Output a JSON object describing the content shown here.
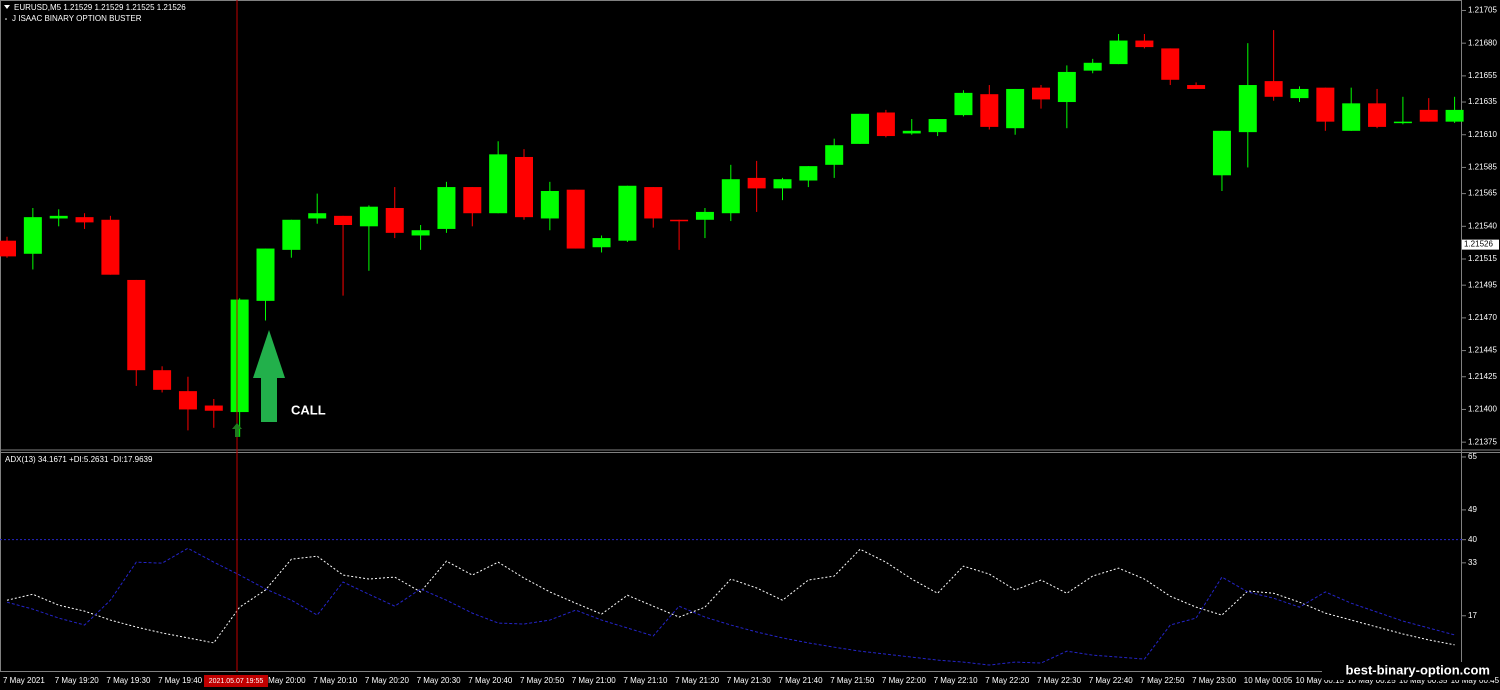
{
  "chart_data": [
    {
      "type": "candlestick",
      "title": "EURUSD,M5  1.21529 1.21529 1.21525 1.21526",
      "subtitle": "J ISAAC BINARY OPTION BUSTER",
      "annotation": "CALL",
      "crosshair": "2021.05.07 19:55",
      "last_price": 1.21526,
      "up_color": "#00ff00",
      "down_color": "#ff0000",
      "categories": [
        "7 May 2021",
        null,
        "7 May 19:20",
        null,
        "7 May 19:30",
        null,
        "7 May 19:40",
        null,
        null,
        null,
        "7 May 20:00",
        null,
        "7 May 20:10",
        null,
        "7 May 20:20",
        null,
        "7 May 20:30",
        null,
        "7 May 20:40",
        null,
        "7 May 20:50",
        null,
        "7 May 21:00",
        null,
        "7 May 21:10",
        null,
        "7 May 21:20",
        null,
        "7 May 21:30",
        null,
        "7 May 21:40",
        null,
        "7 May 21:50",
        null,
        "7 May 22:00",
        null,
        "7 May 22:10",
        null,
        "7 May 22:20",
        null,
        "7 May 22:30",
        null,
        "7 May 22:40",
        null,
        "7 May 22:50",
        null,
        "7 May 23:00",
        null,
        "10 May 00:05",
        null,
        "10 May 00:15",
        null,
        "10 May 00:25",
        null,
        "10 May 00:35",
        null,
        "10 May 00:45"
      ],
      "open": [
        1.21529,
        1.21519,
        1.21546,
        1.21547,
        1.21545,
        1.21499,
        1.2143,
        1.21414,
        1.21403,
        1.21398,
        1.21483,
        1.21522,
        1.21546,
        1.21548,
        1.2154,
        1.21554,
        1.21533,
        1.21538,
        1.2157,
        1.2155,
        1.21593,
        1.21546,
        1.21568,
        1.21524,
        1.21529,
        1.2157,
        1.21545,
        1.21545,
        1.2155,
        1.21577,
        1.21569,
        1.21575,
        1.21587,
        1.21603,
        1.21627,
        1.21611,
        1.21612,
        1.21625,
        1.21641,
        1.21615,
        1.21646,
        1.21635,
        1.21659,
        1.21664,
        1.21682,
        1.21676,
        1.21648,
        1.21579,
        1.21612,
        1.21651,
        1.21638,
        1.21646,
        1.21613,
        1.21634,
        1.21619,
        1.21629,
        1.2162
      ],
      "high": [
        1.21532,
        1.21554,
        1.21553,
        1.2155,
        1.21548,
        1.21499,
        1.21433,
        1.21425,
        1.21408,
        1.21485,
        1.21523,
        1.21545,
        1.21565,
        1.21548,
        1.21556,
        1.2157,
        1.21541,
        1.21574,
        1.2157,
        1.21605,
        1.21599,
        1.21574,
        1.21568,
        1.21533,
        1.21571,
        1.2157,
        1.21545,
        1.21554,
        1.21587,
        1.2159,
        1.21577,
        1.21586,
        1.21607,
        1.21626,
        1.21629,
        1.21622,
        1.21622,
        1.21644,
        1.21648,
        1.21645,
        1.21648,
        1.21663,
        1.21668,
        1.21687,
        1.21687,
        1.21676,
        1.2165,
        1.21613,
        1.2168,
        1.2169,
        1.21647,
        1.21646,
        1.21646,
        1.21645,
        1.21639,
        1.21638,
        1.21639
      ],
      "low": [
        1.21516,
        1.21507,
        1.2154,
        1.21538,
        1.21503,
        1.21418,
        1.21413,
        1.21384,
        1.21386,
        1.21379,
        1.21468,
        1.21516,
        1.21542,
        1.21487,
        1.21506,
        1.21531,
        1.21522,
        1.21535,
        1.2154,
        1.2155,
        1.21545,
        1.21537,
        1.21523,
        1.2152,
        1.21528,
        1.21539,
        1.21522,
        1.21531,
        1.21544,
        1.21551,
        1.2156,
        1.2157,
        1.21577,
        1.21603,
        1.21608,
        1.2161,
        1.21609,
        1.21624,
        1.21614,
        1.2161,
        1.2163,
        1.21615,
        1.21657,
        1.21664,
        1.21676,
        1.21648,
        1.21645,
        1.21567,
        1.21585,
        1.21636,
        1.21635,
        1.21613,
        1.21613,
        1.21615,
        1.21618,
        1.2162,
        1.21619
      ],
      "close": [
        1.21517,
        1.21547,
        1.21548,
        1.21543,
        1.21503,
        1.2143,
        1.21415,
        1.214,
        1.21399,
        1.21484,
        1.21523,
        1.21545,
        1.2155,
        1.21541,
        1.21555,
        1.21535,
        1.21537,
        1.2157,
        1.2155,
        1.21595,
        1.21547,
        1.21567,
        1.21523,
        1.21531,
        1.21571,
        1.21546,
        1.21544,
        1.21551,
        1.21576,
        1.21569,
        1.21576,
        1.21586,
        1.21602,
        1.21626,
        1.21609,
        1.21613,
        1.21622,
        1.21642,
        1.21616,
        1.21645,
        1.21637,
        1.21658,
        1.21665,
        1.21682,
        1.21677,
        1.21652,
        1.21645,
        1.21613,
        1.21648,
        1.21639,
        1.21645,
        1.2162,
        1.21634,
        1.21616,
        1.2162,
        1.2162,
        1.21629
      ],
      "ylim": [
        1.21369,
        1.21713
      ],
      "yticks": [
        1.21705,
        {
          "value": 1.2168,
          "label": "1.21680"
        },
        1.21655,
        1.21635,
        {
          "value": 1.2161,
          "label": "1.21610"
        },
        1.21585,
        1.21565,
        {
          "value": 1.2154,
          "label": "1.21540"
        },
        1.21515,
        1.21495,
        {
          "value": 1.2147,
          "label": "1.21470"
        },
        1.21445,
        1.21425,
        {
          "value": 1.214,
          "label": "1.21400"
        },
        1.21375
      ]
    },
    {
      "type": "line",
      "title": "ADX(13) 34.1671 +DI:5.2631 -DI:17.9639",
      "series": [
        {
          "color": "#ffffff",
          "values": [
            21.7,
            23.5,
            20.2,
            18.4,
            15.7,
            13.6,
            11.8,
            10.3,
            8.8,
            19.6,
            24.8,
            34.1,
            35.0,
            29.3,
            28.1,
            28.7,
            24.2,
            33.5,
            29.3,
            33.2,
            28.4,
            24.2,
            20.8,
            17.5,
            23.2,
            19.9,
            16.6,
            19.6,
            28.1,
            25.4,
            21.7,
            27.8,
            29.0,
            37.1,
            33.2,
            28.1,
            23.8,
            32.0,
            29.6,
            24.8,
            27.8,
            23.8,
            29.0,
            31.4,
            28.1,
            22.9,
            19.6,
            17.2,
            24.5,
            23.8,
            21.1,
            17.8,
            15.7,
            13.6,
            11.5,
            9.7,
            8.2
          ]
        },
        {
          "color": "#2424c8",
          "values": [
            21.1,
            19.0,
            16.3,
            14.2,
            21.7,
            33.2,
            32.9,
            37.4,
            33.2,
            29.3,
            25.1,
            21.7,
            17.2,
            27.2,
            23.5,
            19.9,
            25.1,
            21.7,
            17.8,
            14.8,
            14.5,
            15.7,
            18.7,
            15.7,
            13.3,
            10.9,
            19.9,
            16.6,
            14.2,
            12.1,
            10.3,
            8.8,
            7.5,
            6.3,
            5.4,
            4.5,
            3.6,
            3.0,
            2.1,
            3.0,
            2.7,
            6.3,
            5.1,
            4.5,
            3.9,
            14.2,
            16.3,
            28.7,
            24.2,
            22.3,
            19.6,
            24.2,
            20.8,
            18.1,
            15.4,
            13.3,
            11.2
          ]
        }
      ],
      "hlines": [
        40
      ],
      "ylim": [
        0,
        66.5
      ],
      "yticks": [
        65,
        49,
        40,
        33,
        17
      ]
    }
  ],
  "watermark": "best-binary-option.com"
}
